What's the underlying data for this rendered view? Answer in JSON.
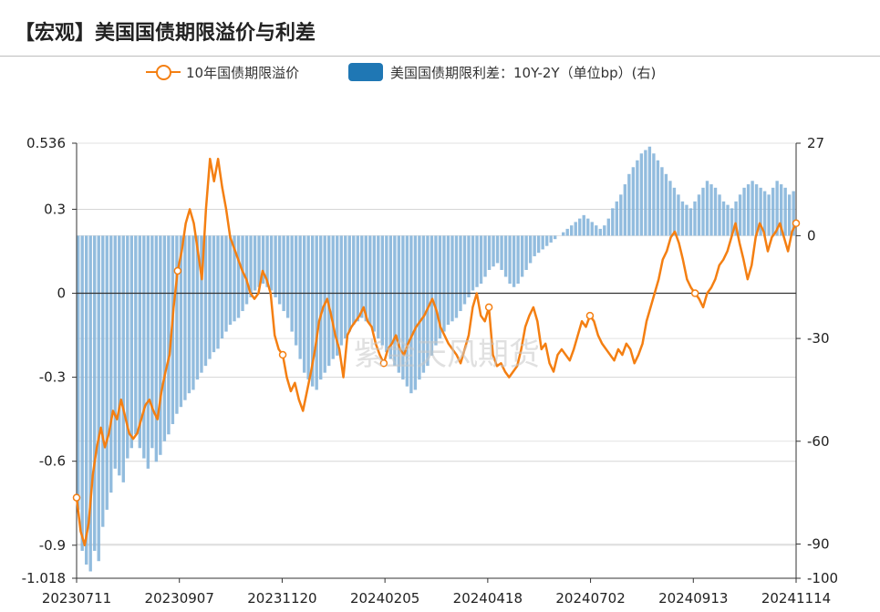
{
  "header": {
    "title": "【宏观】美国国债期限溢价与利差"
  },
  "legend": [
    {
      "label": "10年国债期限溢价",
      "color": "#f47f12"
    },
    {
      "label": "美国国债期限利差：10Y-2Y（单位bp）(右)",
      "color": "#1f77b4"
    }
  ],
  "watermark": "紫金天风期货",
  "chart_data": {
    "type": "line+bar",
    "x_tick_labels": [
      "20230711",
      "20230907",
      "20231120",
      "20240205",
      "20240418",
      "20240702",
      "20240913",
      "20241114"
    ],
    "left_axis": {
      "ticks": [
        0.536,
        0.3,
        0,
        -0.3,
        -0.6,
        -0.9,
        -1.018
      ],
      "tick_labels": [
        "0.536",
        "0.3",
        "0",
        "-0.3",
        "-0.6",
        "-0.9",
        "-1.018"
      ],
      "range": [
        -1.018,
        0.536
      ]
    },
    "right_axis": {
      "ticks": [
        27,
        0,
        -30,
        -60,
        -90,
        -100
      ],
      "tick_labels": [
        "27",
        "0",
        "-30",
        "-60",
        "-90",
        "-100"
      ],
      "range": [
        -100,
        27
      ]
    },
    "series": [
      {
        "name": "10年国债期限溢价",
        "type": "line",
        "axis": "left",
        "color": "#f47f12",
        "values": [
          -0.73,
          -0.85,
          -0.9,
          -0.82,
          -0.65,
          -0.55,
          -0.48,
          -0.55,
          -0.5,
          -0.42,
          -0.45,
          -0.38,
          -0.44,
          -0.5,
          -0.52,
          -0.5,
          -0.45,
          -0.4,
          -0.38,
          -0.42,
          -0.45,
          -0.35,
          -0.28,
          -0.22,
          -0.05,
          0.08,
          0.15,
          0.25,
          0.3,
          0.25,
          0.15,
          0.05,
          0.3,
          0.48,
          0.4,
          0.48,
          0.38,
          0.3,
          0.2,
          0.16,
          0.12,
          0.08,
          0.05,
          0.0,
          -0.02,
          0.0,
          0.08,
          0.05,
          0.0,
          -0.15,
          -0.2,
          -0.22,
          -0.3,
          -0.35,
          -0.32,
          -0.38,
          -0.42,
          -0.35,
          -0.28,
          -0.2,
          -0.1,
          -0.05,
          -0.02,
          -0.08,
          -0.15,
          -0.2,
          -0.3,
          -0.15,
          -0.12,
          -0.1,
          -0.08,
          -0.05,
          -0.1,
          -0.12,
          -0.18,
          -0.22,
          -0.25,
          -0.2,
          -0.18,
          -0.15,
          -0.2,
          -0.22,
          -0.18,
          -0.15,
          -0.12,
          -0.1,
          -0.08,
          -0.05,
          -0.02,
          -0.06,
          -0.12,
          -0.15,
          -0.18,
          -0.2,
          -0.22,
          -0.25,
          -0.2,
          -0.15,
          -0.05,
          0.0,
          -0.08,
          -0.1,
          -0.05,
          -0.22,
          -0.26,
          -0.25,
          -0.28,
          -0.3,
          -0.28,
          -0.26,
          -0.2,
          -0.12,
          -0.08,
          -0.05,
          -0.1,
          -0.2,
          -0.18,
          -0.25,
          -0.28,
          -0.22,
          -0.2,
          -0.22,
          -0.24,
          -0.2,
          -0.15,
          -0.1,
          -0.12,
          -0.08,
          -0.1,
          -0.15,
          -0.18,
          -0.2,
          -0.22,
          -0.24,
          -0.2,
          -0.22,
          -0.18,
          -0.2,
          -0.25,
          -0.22,
          -0.18,
          -0.1,
          -0.05,
          0.0,
          0.05,
          0.12,
          0.15,
          0.2,
          0.22,
          0.18,
          0.12,
          0.05,
          0.02,
          0.0,
          -0.02,
          -0.05,
          0.0,
          0.02,
          0.05,
          0.1,
          0.12,
          0.15,
          0.2,
          0.25,
          0.18,
          0.12,
          0.05,
          0.1,
          0.2,
          0.25,
          0.22,
          0.15,
          0.2,
          0.22,
          0.25,
          0.2,
          0.15,
          0.22,
          0.25
        ]
      },
      {
        "name": "美国国债期限利差：10Y-2Y（单位bp）(右)",
        "type": "bar",
        "axis": "right",
        "color": "#7fb0d8",
        "values": [
          -80,
          -92,
          -96,
          -98,
          -92,
          -95,
          -85,
          -80,
          -75,
          -68,
          -70,
          -72,
          -65,
          -62,
          -58,
          -62,
          -65,
          -68,
          -62,
          -66,
          -64,
          -60,
          -58,
          -55,
          -52,
          -50,
          -48,
          -46,
          -45,
          -42,
          -40,
          -38,
          -36,
          -34,
          -33,
          -30,
          -28,
          -26,
          -25,
          -24,
          -22,
          -20,
          -18,
          -16,
          -15,
          -14,
          -15,
          -16,
          -18,
          -20,
          -22,
          -24,
          -28,
          -32,
          -36,
          -40,
          -42,
          -44,
          -45,
          -42,
          -40,
          -38,
          -36,
          -35,
          -32,
          -30,
          -28,
          -26,
          -25,
          -24,
          -25,
          -26,
          -28,
          -30,
          -32,
          -34,
          -36,
          -38,
          -40,
          -42,
          -44,
          -46,
          -45,
          -42,
          -40,
          -38,
          -35,
          -32,
          -30,
          -28,
          -26,
          -25,
          -24,
          -22,
          -20,
          -18,
          -16,
          -15,
          -14,
          -12,
          -10,
          -9,
          -8,
          -10,
          -12,
          -14,
          -15,
          -14,
          -12,
          -10,
          -8,
          -6,
          -5,
          -4,
          -3,
          -2,
          -1,
          0,
          1,
          2,
          3,
          4,
          5,
          6,
          5,
          4,
          3,
          2,
          3,
          5,
          8,
          10,
          12,
          15,
          18,
          20,
          22,
          24,
          25,
          26,
          24,
          22,
          20,
          18,
          16,
          14,
          12,
          10,
          9,
          8,
          10,
          12,
          14,
          16,
          15,
          14,
          12,
          10,
          9,
          8,
          10,
          12,
          14,
          15,
          16,
          15,
          14,
          13,
          12,
          14,
          16,
          15,
          14,
          12,
          13
        ]
      }
    ],
    "markers": [
      {
        "series": "10年国债期限溢价",
        "label": "20230711"
      },
      {
        "series": "10年国债期限溢价",
        "label": "20230907"
      },
      {
        "series": "10年国债期限溢价",
        "label": "20231120"
      },
      {
        "series": "10年国债期限溢价",
        "label": "20240205"
      },
      {
        "series": "10年国债期限溢价",
        "label": "20240418"
      },
      {
        "series": "10年国债期限溢价",
        "label": "20240702"
      },
      {
        "series": "10年国债期限溢价",
        "label": "20240913"
      },
      {
        "series": "10年国债期限溢价",
        "label": "20241114"
      }
    ],
    "grid": true,
    "legend_position": "top"
  }
}
